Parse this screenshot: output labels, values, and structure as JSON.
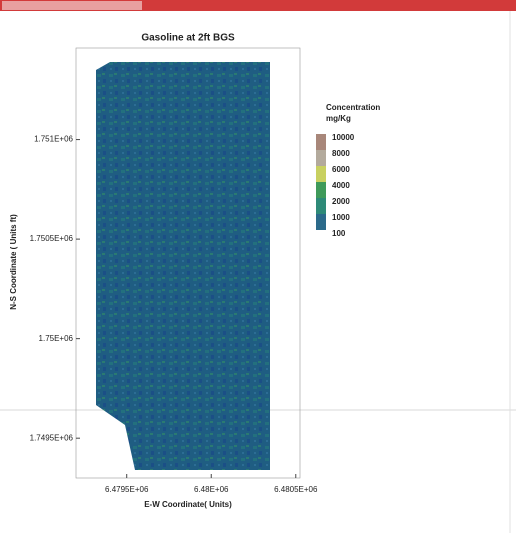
{
  "chart_data": {
    "type": "contour",
    "title": "Gasoline at 2ft BGS",
    "xlabel": "E-W Coordinate( Units)",
    "ylabel": "N-S Coordinate ( Units ft)",
    "xlim": [
      6479200,
      6480525
    ],
    "xticks": [
      {
        "value": 6479500,
        "label": "6.4795E+06"
      },
      {
        "value": 6480000,
        "label": "6.48E+06"
      },
      {
        "value": 6480500,
        "label": "6.4805E+06"
      }
    ],
    "ylim": [
      1749300,
      1751460
    ],
    "yticks": [
      {
        "value": 1751000,
        "label": "1.751E+06"
      },
      {
        "value": 1750500,
        "label": "1.7505E+06"
      },
      {
        "value": 1750000,
        "label": "1.75E+06"
      },
      {
        "value": 1749500,
        "label": "1.7495E+06"
      }
    ],
    "legend_title": "Concentration",
    "legend_unit": "mg/Kg",
    "levels": [
      10000,
      8000,
      6000,
      4000,
      2000,
      1000,
      100
    ],
    "level_colors": [
      "#a8877a",
      "#b3aa9c",
      "#c8d060",
      "#3f9a5a",
      "#2e8a78",
      "#2b6a8a"
    ]
  }
}
